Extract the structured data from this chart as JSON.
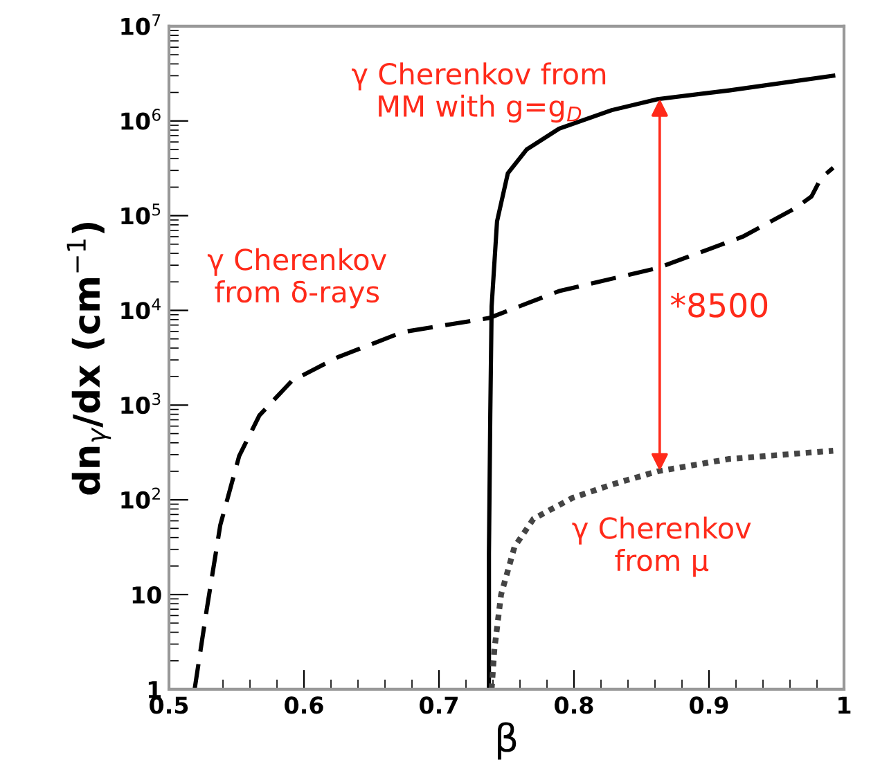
{
  "chart_data": {
    "type": "line",
    "xlabel": "β",
    "ylabel": "dn$_{γ}$/dx (cm$^{−1}$)",
    "log": "y",
    "xlim": [
      0.5,
      1.0
    ],
    "xticks": [
      0.5,
      0.6,
      0.7,
      0.8,
      0.9,
      1
    ],
    "ylim": [
      1,
      10000000
    ],
    "yticks": [
      1,
      10,
      {
        "value": 100,
        "label": "10$^{2}$"
      },
      {
        "value": 1000,
        "label": "10$^{3}$"
      },
      {
        "value": 10000,
        "label": "10$^{4}$"
      },
      {
        "value": 100000,
        "label": "10$^{5}$"
      },
      {
        "value": 1000000,
        "label": "10$^{6}$"
      },
      {
        "value": 10000000,
        "label": "10$^{7}$"
      }
    ],
    "grid": false,
    "series": [
      {
        "color": "#000000",
        "line_style": "solid",
        "x": [
          0.737,
          0.737,
          0.738,
          0.739,
          0.743,
          0.751,
          0.765,
          0.789,
          0.828,
          0.862,
          0.915,
          0.992
        ],
        "values": [
          1,
          27,
          800,
          11000,
          87000,
          280000,
          500000,
          830000,
          1300000,
          1700000,
          2100000,
          3000000
        ]
      },
      {
        "color": "#000000",
        "line_style": "dashed",
        "x": [
          0.519,
          0.528,
          0.538,
          0.552,
          0.567,
          0.591,
          0.625,
          0.673,
          0.737,
          0.789,
          0.862,
          0.925,
          0.964,
          0.976,
          0.983,
          0.992
        ],
        "values": [
          1,
          7,
          54,
          290,
          780,
          1800,
          3200,
          5900,
          8300,
          16000,
          28000,
          60000,
          120000,
          160000,
          250000,
          320000
        ]
      },
      {
        "color": "#444444",
        "line_style": "dotted",
        "x": [
          0.739,
          0.741,
          0.746,
          0.756,
          0.77,
          0.799,
          0.828,
          0.862,
          0.915,
          0.992
        ],
        "values": [
          1,
          2.6,
          10,
          32,
          63,
          105,
          145,
          200,
          270,
          330
        ]
      }
    ],
    "annotations": [
      "γ Cherenkov from\nMM with g=g$_{D}$",
      "γ Cherenkov\nfrom δ-rays",
      "γ Cherenkov\nfrom μ",
      "*8500"
    ]
  }
}
